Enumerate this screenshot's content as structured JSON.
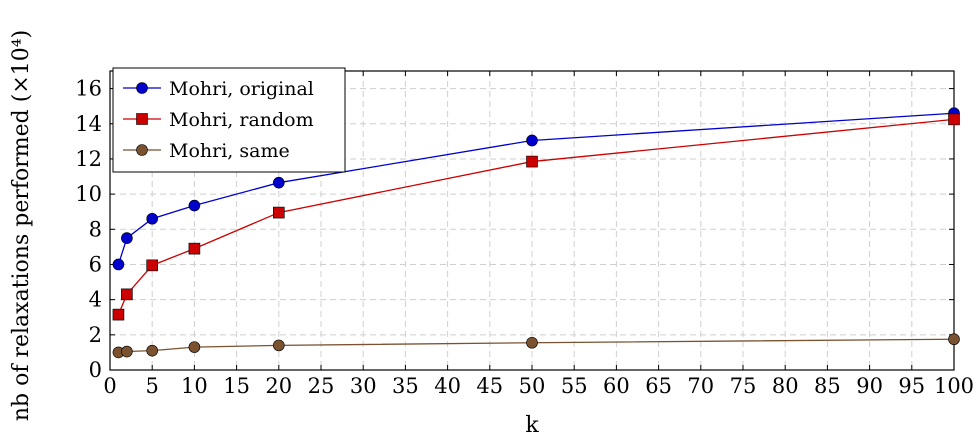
{
  "chart_data": {
    "type": "line",
    "xlabel": "k",
    "ylabel": "nb of relaxations performed (×10⁴)",
    "x": [
      1,
      2,
      5,
      10,
      20,
      50,
      100
    ],
    "xlim": [
      0,
      100
    ],
    "ylim": [
      0,
      17
    ],
    "xticks": [
      0,
      5,
      10,
      15,
      20,
      25,
      30,
      35,
      40,
      45,
      50,
      55,
      60,
      65,
      70,
      75,
      80,
      85,
      90,
      95,
      100
    ],
    "yticks": [
      0,
      2,
      4,
      6,
      8,
      10,
      12,
      14,
      16
    ],
    "grid": true,
    "legend_position": "top-left",
    "series": [
      {
        "name": "Mohri, original",
        "color": "#0000cc",
        "marker": "circle",
        "values": [
          6.0,
          7.5,
          8.6,
          9.35,
          10.65,
          13.05,
          14.6
        ]
      },
      {
        "name": "Mohri, random",
        "color": "#cc0000",
        "marker": "square",
        "values": [
          3.15,
          4.3,
          5.95,
          6.9,
          8.95,
          11.85,
          14.25
        ]
      },
      {
        "name": "Mohri, same",
        "color": "#7a5230",
        "marker": "circle",
        "values": [
          1.0,
          1.05,
          1.1,
          1.3,
          1.4,
          1.55,
          1.75
        ]
      }
    ]
  }
}
